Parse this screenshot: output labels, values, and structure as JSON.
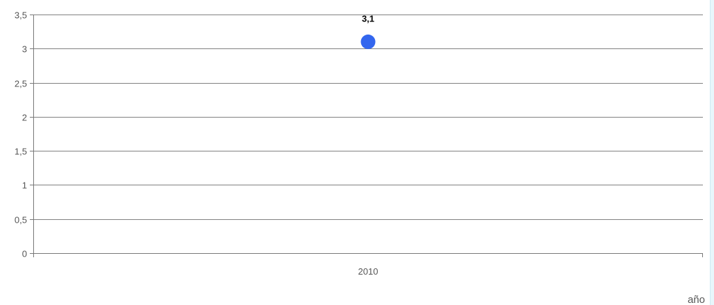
{
  "chart_data": {
    "type": "scatter",
    "categories": [
      "2010"
    ],
    "series": [
      {
        "values": [
          3.1
        ],
        "data_labels": [
          "3,1"
        ]
      }
    ],
    "xlabel": "año",
    "ylabel": "",
    "title": "",
    "ylim": [
      0,
      3.5
    ],
    "yticks": [
      0,
      0.5,
      1,
      1.5,
      2,
      2.5,
      3,
      3.5
    ],
    "ytick_labels": [
      "0",
      "0,5",
      "1",
      "1,5",
      "2",
      "2,5",
      "3",
      "3,5"
    ],
    "grid": true,
    "legend": "none",
    "colors": {
      "point": "#3366ee",
      "grid": "#808080",
      "axis": "#777777",
      "text": "#555555"
    }
  }
}
